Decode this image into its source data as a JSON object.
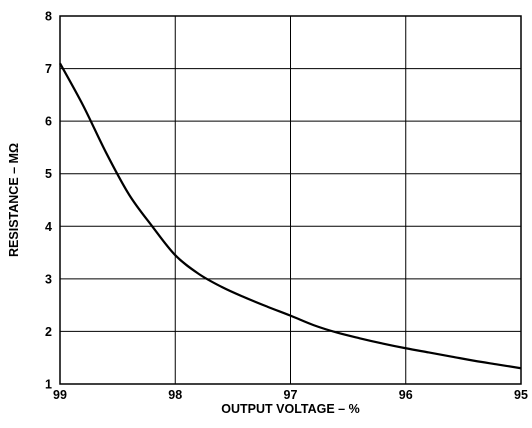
{
  "chart_data": {
    "type": "line",
    "title": "",
    "xlabel": "OUTPUT VOLTAGE – %",
    "ylabel": "RESISTANCE – MΩ",
    "x_reversed": true,
    "xlim": [
      99,
      95
    ],
    "ylim": [
      1,
      8
    ],
    "xticks": [
      "99",
      "98",
      "97",
      "96",
      "95"
    ],
    "yticks": [
      "1",
      "2",
      "3",
      "4",
      "5",
      "6",
      "7",
      "8"
    ],
    "grid": true,
    "legend": "none",
    "line_color": "#000000",
    "series": [
      {
        "x": [
          99.0,
          98.8,
          98.6,
          98.4,
          98.2,
          98.0,
          97.8,
          97.6,
          97.4,
          97.2,
          97.0,
          96.8,
          96.6,
          96.4,
          96.2,
          96.0,
          95.8,
          95.6,
          95.4,
          95.2,
          95.0
        ],
        "values": [
          7.1,
          6.3,
          5.4,
          4.6,
          4.0,
          3.45,
          3.1,
          2.85,
          2.65,
          2.47,
          2.3,
          2.12,
          1.98,
          1.87,
          1.77,
          1.68,
          1.6,
          1.52,
          1.44,
          1.37,
          1.3
        ]
      }
    ]
  }
}
